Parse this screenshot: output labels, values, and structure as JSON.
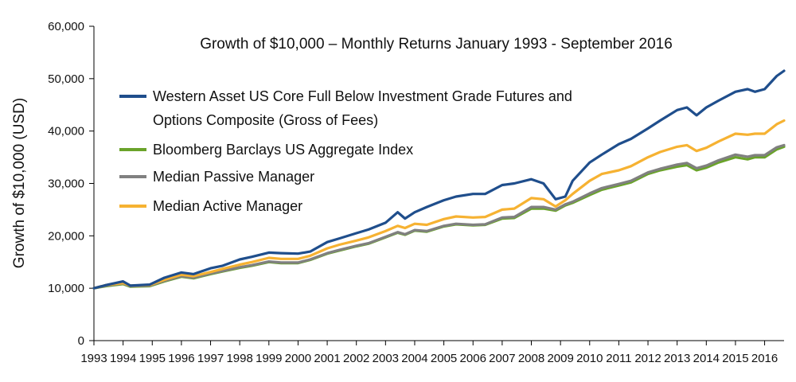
{
  "chart_data": {
    "type": "line",
    "title": "Growth of $10,000 – Monthly Returns January 1993 - September 2016",
    "xlabel": "",
    "ylabel": "Growth of $10,000 (USD)",
    "ylim": [
      0,
      60000
    ],
    "y_ticks": [
      0,
      10000,
      20000,
      30000,
      40000,
      50000,
      60000
    ],
    "y_tick_labels": [
      "0",
      "10,000",
      "20,000",
      "30,000",
      "40,000",
      "50,000",
      "60,000"
    ],
    "x_ticks": [
      1993,
      1994,
      1995,
      1996,
      1997,
      1998,
      1999,
      2000,
      2001,
      2002,
      2003,
      2004,
      2005,
      2006,
      2007,
      2008,
      2009,
      2010,
      2011,
      2012,
      2013,
      2014,
      2015,
      2016
    ],
    "x_tick_labels": [
      "1993",
      "1994",
      "1995",
      "1996",
      "1997",
      "1998",
      "1999",
      "2000",
      "2001",
      "2002",
      "2003",
      "2004",
      "2005",
      "2006",
      "2007",
      "2008",
      "2009",
      "2010",
      "2011",
      "2012",
      "2013",
      "2014",
      "2015",
      "2016"
    ],
    "xlim": [
      "1993-01",
      "2016-09"
    ],
    "grid": false,
    "legend_position": "top-left",
    "series": [
      {
        "name_lines": [
          "Western Asset US Core Full Below Investment Grade Futures and",
          "Options Composite (Gross of Fees)"
        ],
        "color": "#1f4e8c",
        "points": [
          [
            "1993-01",
            10000
          ],
          [
            "1993-06",
            10600
          ],
          [
            "1994-01",
            11300
          ],
          [
            "1994-04",
            10500
          ],
          [
            "1994-12",
            10700
          ],
          [
            "1995-06",
            12000
          ],
          [
            "1996-01",
            13000
          ],
          [
            "1996-06",
            12700
          ],
          [
            "1997-01",
            13800
          ],
          [
            "1997-06",
            14300
          ],
          [
            "1998-01",
            15500
          ],
          [
            "1998-06",
            16000
          ],
          [
            "1999-01",
            16800
          ],
          [
            "1999-06",
            16700
          ],
          [
            "2000-01",
            16600
          ],
          [
            "2000-06",
            17000
          ],
          [
            "2001-01",
            18800
          ],
          [
            "2001-06",
            19500
          ],
          [
            "2002-01",
            20500
          ],
          [
            "2002-06",
            21200
          ],
          [
            "2003-01",
            22500
          ],
          [
            "2003-06",
            24500
          ],
          [
            "2003-09",
            23300
          ],
          [
            "2004-01",
            24500
          ],
          [
            "2004-06",
            25500
          ],
          [
            "2005-01",
            26800
          ],
          [
            "2005-06",
            27500
          ],
          [
            "2006-01",
            28000
          ],
          [
            "2006-06",
            28000
          ],
          [
            "2007-01",
            29700
          ],
          [
            "2007-06",
            30000
          ],
          [
            "2008-01",
            30800
          ],
          [
            "2008-06",
            30000
          ],
          [
            "2008-11",
            27000
          ],
          [
            "2009-03",
            27500
          ],
          [
            "2009-06",
            30500
          ],
          [
            "2010-01",
            34000
          ],
          [
            "2010-06",
            35500
          ],
          [
            "2011-01",
            37500
          ],
          [
            "2011-06",
            38500
          ],
          [
            "2012-01",
            40500
          ],
          [
            "2012-06",
            42000
          ],
          [
            "2013-01",
            44000
          ],
          [
            "2013-05",
            44500
          ],
          [
            "2013-09",
            43000
          ],
          [
            "2014-01",
            44500
          ],
          [
            "2014-06",
            45800
          ],
          [
            "2015-01",
            47500
          ],
          [
            "2015-06",
            48000
          ],
          [
            "2015-09",
            47500
          ],
          [
            "2016-01",
            48000
          ],
          [
            "2016-06",
            50500
          ],
          [
            "2016-09",
            51500
          ]
        ]
      },
      {
        "name": "Bloomberg Barclays US Aggregate Index",
        "color": "#6aa32a",
        "points": [
          [
            "1993-01",
            10000
          ],
          [
            "1993-06",
            10400
          ],
          [
            "1994-01",
            10800
          ],
          [
            "1994-04",
            10300
          ],
          [
            "1994-12",
            10400
          ],
          [
            "1995-06",
            11300
          ],
          [
            "1996-01",
            12200
          ],
          [
            "1996-06",
            11900
          ],
          [
            "1997-01",
            12700
          ],
          [
            "1997-06",
            13200
          ],
          [
            "1998-01",
            13900
          ],
          [
            "1998-06",
            14300
          ],
          [
            "1999-01",
            15000
          ],
          [
            "1999-06",
            14800
          ],
          [
            "2000-01",
            14800
          ],
          [
            "2000-06",
            15400
          ],
          [
            "2001-01",
            16600
          ],
          [
            "2001-06",
            17200
          ],
          [
            "2002-01",
            18000
          ],
          [
            "2002-06",
            18500
          ],
          [
            "2003-01",
            19700
          ],
          [
            "2003-06",
            20600
          ],
          [
            "2003-09",
            20200
          ],
          [
            "2004-01",
            21000
          ],
          [
            "2004-06",
            20800
          ],
          [
            "2005-01",
            21800
          ],
          [
            "2005-06",
            22200
          ],
          [
            "2006-01",
            22000
          ],
          [
            "2006-06",
            22100
          ],
          [
            "2007-01",
            23300
          ],
          [
            "2007-06",
            23400
          ],
          [
            "2008-01",
            25200
          ],
          [
            "2008-06",
            25200
          ],
          [
            "2008-11",
            24800
          ],
          [
            "2009-03",
            25800
          ],
          [
            "2009-06",
            26300
          ],
          [
            "2010-01",
            27800
          ],
          [
            "2010-06",
            28800
          ],
          [
            "2011-01",
            29600
          ],
          [
            "2011-06",
            30200
          ],
          [
            "2012-01",
            31800
          ],
          [
            "2012-06",
            32500
          ],
          [
            "2013-01",
            33200
          ],
          [
            "2013-05",
            33500
          ],
          [
            "2013-09",
            32500
          ],
          [
            "2014-01",
            33000
          ],
          [
            "2014-06",
            34000
          ],
          [
            "2015-01",
            35000
          ],
          [
            "2015-06",
            34600
          ],
          [
            "2015-09",
            35000
          ],
          [
            "2016-01",
            35000
          ],
          [
            "2016-06",
            36500
          ],
          [
            "2016-09",
            37000
          ]
        ]
      },
      {
        "name": "Median Passive Manager",
        "color": "#808080",
        "points": [
          [
            "1993-01",
            10000
          ],
          [
            "1993-06",
            10500
          ],
          [
            "1994-01",
            10900
          ],
          [
            "1994-04",
            10400
          ],
          [
            "1994-12",
            10500
          ],
          [
            "1995-06",
            11400
          ],
          [
            "1996-01",
            12300
          ],
          [
            "1996-06",
            12000
          ],
          [
            "1997-01",
            12800
          ],
          [
            "1997-06",
            13300
          ],
          [
            "1998-01",
            14000
          ],
          [
            "1998-06",
            14400
          ],
          [
            "1999-01",
            15100
          ],
          [
            "1999-06",
            14900
          ],
          [
            "2000-01",
            14900
          ],
          [
            "2000-06",
            15500
          ],
          [
            "2001-01",
            16700
          ],
          [
            "2001-06",
            17300
          ],
          [
            "2002-01",
            18100
          ],
          [
            "2002-06",
            18600
          ],
          [
            "2003-01",
            19800
          ],
          [
            "2003-06",
            20700
          ],
          [
            "2003-09",
            20300
          ],
          [
            "2004-01",
            21100
          ],
          [
            "2004-06",
            20900
          ],
          [
            "2005-01",
            21900
          ],
          [
            "2005-06",
            22300
          ],
          [
            "2006-01",
            22100
          ],
          [
            "2006-06",
            22200
          ],
          [
            "2007-01",
            23500
          ],
          [
            "2007-06",
            23600
          ],
          [
            "2008-01",
            25500
          ],
          [
            "2008-06",
            25500
          ],
          [
            "2008-11",
            25000
          ],
          [
            "2009-03",
            26000
          ],
          [
            "2009-06",
            26500
          ],
          [
            "2010-01",
            28100
          ],
          [
            "2010-06",
            29100
          ],
          [
            "2011-01",
            29900
          ],
          [
            "2011-06",
            30500
          ],
          [
            "2012-01",
            32100
          ],
          [
            "2012-06",
            32800
          ],
          [
            "2013-01",
            33600
          ],
          [
            "2013-05",
            33900
          ],
          [
            "2013-09",
            32900
          ],
          [
            "2014-01",
            33400
          ],
          [
            "2014-06",
            34400
          ],
          [
            "2015-01",
            35500
          ],
          [
            "2015-06",
            35100
          ],
          [
            "2015-09",
            35400
          ],
          [
            "2016-01",
            35400
          ],
          [
            "2016-06",
            36900
          ],
          [
            "2016-09",
            37300
          ]
        ]
      },
      {
        "name": "Median Active Manager",
        "color": "#f6b232",
        "points": [
          [
            "1993-01",
            10000
          ],
          [
            "1993-06",
            10600
          ],
          [
            "1994-01",
            11000
          ],
          [
            "1994-04",
            10500
          ],
          [
            "1994-12",
            10600
          ],
          [
            "1995-06",
            11600
          ],
          [
            "1996-01",
            12600
          ],
          [
            "1996-06",
            12300
          ],
          [
            "1997-01",
            13100
          ],
          [
            "1997-06",
            13700
          ],
          [
            "1998-01",
            14500
          ],
          [
            "1998-06",
            15000
          ],
          [
            "1999-01",
            15800
          ],
          [
            "1999-06",
            15600
          ],
          [
            "2000-01",
            15600
          ],
          [
            "2000-06",
            16200
          ],
          [
            "2001-01",
            17600
          ],
          [
            "2001-06",
            18300
          ],
          [
            "2002-01",
            19100
          ],
          [
            "2002-06",
            19700
          ],
          [
            "2003-01",
            20900
          ],
          [
            "2003-06",
            21900
          ],
          [
            "2003-09",
            21500
          ],
          [
            "2004-01",
            22300
          ],
          [
            "2004-06",
            22100
          ],
          [
            "2005-01",
            23200
          ],
          [
            "2005-06",
            23700
          ],
          [
            "2006-01",
            23500
          ],
          [
            "2006-06",
            23600
          ],
          [
            "2007-01",
            25000
          ],
          [
            "2007-06",
            25200
          ],
          [
            "2008-01",
            27200
          ],
          [
            "2008-06",
            27000
          ],
          [
            "2008-11",
            25600
          ],
          [
            "2009-03",
            26800
          ],
          [
            "2009-06",
            28000
          ],
          [
            "2010-01",
            30500
          ],
          [
            "2010-06",
            31800
          ],
          [
            "2011-01",
            32500
          ],
          [
            "2011-06",
            33300
          ],
          [
            "2012-01",
            35000
          ],
          [
            "2012-06",
            36000
          ],
          [
            "2013-01",
            37000
          ],
          [
            "2013-05",
            37300
          ],
          [
            "2013-09",
            36200
          ],
          [
            "2014-01",
            36800
          ],
          [
            "2014-06",
            38000
          ],
          [
            "2015-01",
            39500
          ],
          [
            "2015-06",
            39300
          ],
          [
            "2015-09",
            39500
          ],
          [
            "2016-01",
            39500
          ],
          [
            "2016-06",
            41300
          ],
          [
            "2016-09",
            42000
          ]
        ]
      }
    ]
  }
}
